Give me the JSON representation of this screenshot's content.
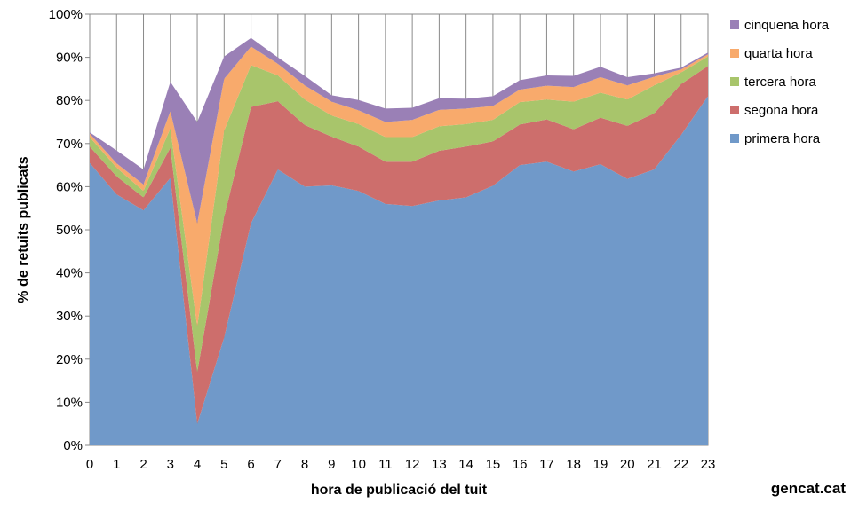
{
  "chart_data": {
    "type": "area",
    "stacked": true,
    "xlabel": "hora de publicació del tuit",
    "ylabel": "% de retuits publicats",
    "ylim": [
      0,
      100
    ],
    "y_ticks": [
      "0%",
      "10%",
      "20%",
      "30%",
      "40%",
      "50%",
      "60%",
      "70%",
      "80%",
      "90%",
      "100%"
    ],
    "x": [
      0,
      1,
      2,
      3,
      4,
      5,
      6,
      7,
      8,
      9,
      10,
      11,
      12,
      13,
      14,
      15,
      16,
      17,
      18,
      19,
      20,
      21,
      22,
      23
    ],
    "x_ticks": [
      "0",
      "1",
      "2",
      "3",
      "4",
      "5",
      "6",
      "7",
      "8",
      "9",
      "10",
      "11",
      "12",
      "13",
      "14",
      "15",
      "16",
      "17",
      "18",
      "19",
      "20",
      "21",
      "22",
      "23"
    ],
    "grid": "vertical",
    "legend_position": "right",
    "series": [
      {
        "name": "primera hora",
        "color": "#7099c9",
        "values": [
          65.5,
          58.2,
          54.5,
          62.0,
          5.0,
          25.0,
          51.5,
          64.0,
          60.0,
          60.3,
          59.0,
          56.0,
          55.5,
          56.8,
          57.5,
          60.2,
          65.0,
          65.8,
          63.5,
          65.2,
          61.8,
          64.0,
          72.0,
          81.0
        ]
      },
      {
        "name": "segona hora",
        "color": "#cd6e6c",
        "values": [
          3.8,
          4.2,
          3.0,
          7.0,
          12.0,
          28.0,
          27.0,
          15.8,
          14.3,
          11.3,
          10.3,
          9.8,
          10.3,
          11.5,
          11.8,
          10.3,
          9.4,
          9.8,
          9.8,
          10.8,
          12.3,
          13.0,
          11.8,
          7.0
        ]
      },
      {
        "name": "tercera hora",
        "color": "#a8c56b",
        "values": [
          2.2,
          2.0,
          1.5,
          4.5,
          10.5,
          20.0,
          9.7,
          6.0,
          5.9,
          4.9,
          5.2,
          5.7,
          5.7,
          5.7,
          5.2,
          5.0,
          5.2,
          4.6,
          6.4,
          5.8,
          6.1,
          6.5,
          2.7,
          2.2
        ]
      },
      {
        "name": "quarta hora",
        "color": "#f8aa6c",
        "values": [
          0.8,
          1.0,
          1.5,
          4.0,
          24.0,
          12.0,
          4.3,
          2.7,
          3.3,
          3.2,
          3.2,
          3.5,
          4.0,
          3.8,
          3.6,
          3.2,
          2.9,
          3.2,
          3.4,
          3.6,
          3.3,
          2.0,
          0.7,
          0.5
        ]
      },
      {
        "name": "cinquena hora",
        "color": "#9a80b6",
        "values": [
          0.3,
          3.0,
          3.5,
          6.8,
          23.5,
          5.2,
          2.0,
          1.5,
          2.2,
          1.5,
          2.4,
          3.1,
          2.8,
          2.7,
          2.3,
          2.3,
          2.2,
          2.4,
          2.6,
          2.4,
          1.9,
          0.8,
          0.4,
          0.4
        ]
      }
    ]
  },
  "credit": "gencat.cat"
}
